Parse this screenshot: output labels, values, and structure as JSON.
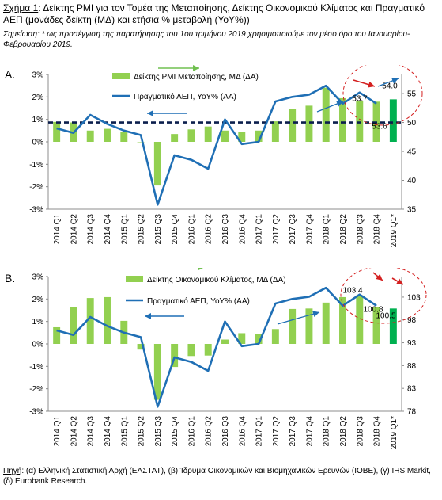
{
  "figure": {
    "caption_lead": "Σχήμα 1",
    "caption_text": ": Δείκτης PMI για τον Τομέα της Μεταποίησης, Δείκτης Οικονομικού Κλίματος και Πραγματικό ΑΕΠ (μονάδες δείκτη (ΜΔ) και ετήσια % μεταβολή (YoY%))",
    "note_text": "Σημείωση: * ως προσέγγιση της παρατήρησης του 1ου τριμήνου 2019 χρησιμοποιούμε τον μέσο όρο του Ιανουαρίου-Φεβρουαρίου 2019.",
    "source_lead": "Πηγή",
    "source_text": ": (α) Ελληνική Στατιστική Αρχή (ΕΛΣΤΑΤ), (β) Ίδρυμα Οικονομικών και Βιομηχανικών Ερευνών (ΙΟΒΕ), (γ) IHS Markit, (δ) Eurobank Research."
  },
  "colors": {
    "bar": "#92d050",
    "bar_last": "#00b050",
    "line": "#1f6fb5",
    "dashed": "#0b1f4d",
    "arrow_green": "#70c050",
    "arrow_blue": "#1f6fb5",
    "arrow_red": "#d42020",
    "circle": "#d42020"
  },
  "chart_data": [
    {
      "panel_label": "A.",
      "type": "bar",
      "categories": [
        "2014 Q1",
        "2014 Q2",
        "2014 Q3",
        "2014 Q4",
        "2015 Q1",
        "2015 Q2",
        "2015 Q3",
        "2015 Q4",
        "2016 Q1",
        "2016 Q2",
        "2016 Q3",
        "2016 Q4",
        "2017 Q1",
        "2017 Q2",
        "2017 Q3",
        "2017 Q4",
        "2018 Q1",
        "2018 Q2",
        "2018 Q3",
        "2018 Q4",
        "2019 Q1*"
      ],
      "y_left_ticks": [
        "-3%",
        "-2%",
        "-1%",
        "0%",
        "1%",
        "2%",
        "3%"
      ],
      "y_left_lim": [
        -3,
        3
      ],
      "y_right_ticks": [
        "35",
        "40",
        "45",
        "50",
        "55"
      ],
      "y_right_lim": [
        35,
        58.3
      ],
      "bar_series": {
        "name": "Δείκτης PMI Μεταποίησης, ΜΔ (ΔΑ)",
        "axis": "right",
        "values": [
          50.1,
          50.0,
          48.6,
          48.9,
          48.4,
          46.6,
          39.1,
          48.0,
          48.8,
          49.3,
          48.6,
          48.4,
          48.6,
          50.2,
          52.4,
          52.9,
          56.0,
          54.2,
          53.7,
          53.6,
          54.0
        ]
      },
      "line_series": {
        "name": "Πραγματικό ΑΕΠ, YoY% (ΑΑ)",
        "axis": "left",
        "values": [
          0.6,
          0.4,
          1.2,
          0.8,
          0.5,
          0.3,
          -2.8,
          -0.6,
          -0.8,
          -1.2,
          1.0,
          -0.1,
          0.0,
          1.8,
          2.0,
          2.1,
          2.5,
          1.7,
          2.2,
          1.7
        ]
      },
      "threshold": {
        "axis": "right",
        "value": 50
      },
      "annotations": [
        {
          "text": "53.7",
          "category": "2018 Q3",
          "value": 53.7
        },
        {
          "text": "53.6",
          "category": "2018 Q4",
          "value": 53.6
        },
        {
          "text": "54.0",
          "category": "2019 Q1*",
          "value": 54.0
        }
      ]
    },
    {
      "panel_label": "B.",
      "type": "bar",
      "categories": [
        "2014 Q1",
        "2014 Q2",
        "2014 Q3",
        "2014 Q4",
        "2015 Q1",
        "2015 Q2",
        "2015 Q3",
        "2015 Q4",
        "2016 Q1",
        "2016 Q2",
        "2016 Q3",
        "2016 Q4",
        "2017 Q1",
        "2017 Q2",
        "2017 Q3",
        "2017 Q4",
        "2018 Q1",
        "2018 Q2",
        "2018 Q3",
        "2018 Q4",
        "2019 Q1*"
      ],
      "y_left_ticks": [
        "-3%",
        "-2%",
        "-1%",
        "0%",
        "1%",
        "2%",
        "3%"
      ],
      "y_left_lim": [
        -3,
        3
      ],
      "y_right_ticks": [
        "78",
        "83",
        "88",
        "93",
        "98",
        "103"
      ],
      "y_right_lim": [
        78,
        107.5
      ],
      "bar_series": {
        "name": "Δείκτης Οικονομικού Κλίματος, ΜΔ (ΔΑ)",
        "axis": "right",
        "values": [
          96.4,
          100.9,
          102.8,
          103.0,
          97.8,
          91.5,
          80.5,
          87.7,
          90.1,
          90.2,
          93.7,
          95.1,
          94.9,
          96.0,
          100.4,
          100.5,
          101.8,
          103.0,
          103.4,
          100.8,
          100.5
        ]
      },
      "line_series": {
        "name": "Πραγματικό ΑΕΠ, YoY% (ΑΑ)",
        "axis": "left",
        "values": [
          0.6,
          0.4,
          1.2,
          0.8,
          0.5,
          0.3,
          -2.8,
          -0.6,
          -0.8,
          -1.2,
          1.0,
          -0.1,
          0.0,
          1.8,
          2.0,
          2.1,
          2.5,
          1.7,
          2.2,
          1.7
        ]
      },
      "annotations": [
        {
          "text": "103.4",
          "category": "2018 Q3",
          "value": 103.4
        },
        {
          "text": "100.8",
          "category": "2018 Q4",
          "value": 100.8
        },
        {
          "text": "100.5",
          "category": "2019 Q1*",
          "value": 100.5
        }
      ]
    }
  ]
}
